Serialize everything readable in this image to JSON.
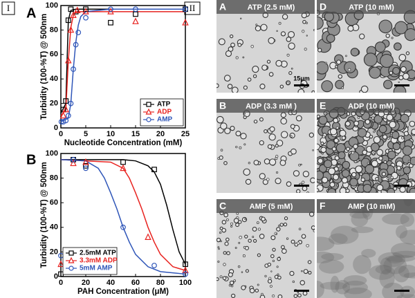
{
  "figure": {
    "part_labels": [
      "I",
      "II"
    ],
    "chart_labels": [
      "A",
      "B"
    ],
    "micrographs": [
      {
        "letter": "A",
        "label": "ATP (2.5 mM)"
      },
      {
        "letter": "D",
        "label": "ATP (10 mM)"
      },
      {
        "letter": "B",
        "label": "ADP (3.3 mM )"
      },
      {
        "letter": "E",
        "label": "ADP (10 mM)"
      },
      {
        "letter": "C",
        "label": "AMP (5 mM)"
      },
      {
        "letter": "F",
        "label": "AMP (10 mM)"
      }
    ],
    "scale_label": "15μm"
  },
  "chart_data": [
    {
      "type": "scatter",
      "xlabel": "Nucleotide Concentration (mM)",
      "ylabel": "Turbidity (100-%T) @ 500nm",
      "xlim": [
        0,
        25
      ],
      "ylim": [
        0,
        100
      ],
      "xticks": [
        0,
        5,
        10,
        15,
        20,
        25
      ],
      "yticks": [
        0,
        20,
        40,
        60,
        80,
        100
      ],
      "legend": "lower right",
      "series": [
        {
          "name": "ATP",
          "color": "#000000",
          "marker": "square",
          "x": [
            0.5,
            1,
            1.5,
            2,
            3,
            5,
            10,
            15,
            25
          ],
          "values": [
            15,
            22,
            88,
            97,
            95,
            97,
            86,
            93,
            97
          ]
        },
        {
          "name": "ADP",
          "color": "#e8221f",
          "marker": "triangle",
          "x": [
            0.5,
            1,
            1.5,
            2,
            2.5,
            3.3,
            5,
            10,
            15,
            25
          ],
          "values": [
            10,
            15,
            55,
            80,
            92,
            96,
            95,
            95,
            87,
            86
          ]
        },
        {
          "name": "AMP",
          "color": "#2e55b8",
          "marker": "circle",
          "x": [
            0.1,
            0.5,
            1,
            1.5,
            2,
            2.5,
            3,
            3.5,
            5,
            10,
            15,
            25
          ],
          "values": [
            5,
            5,
            6,
            10,
            20,
            48,
            68,
            78,
            90,
            97,
            97,
            97
          ]
        }
      ],
      "curves": [
        {
          "color": "#000000",
          "x": [
            0,
            1,
            1.25,
            1.5,
            2,
            3,
            5,
            10,
            25
          ],
          "values": [
            12,
            20,
            55,
            88,
            96,
            97,
            97,
            97,
            97
          ]
        },
        {
          "color": "#e8221f",
          "x": [
            0,
            1,
            1.5,
            2,
            2.5,
            3,
            5,
            25
          ],
          "values": [
            10,
            15,
            55,
            82,
            92,
            95,
            95,
            95
          ]
        },
        {
          "color": "#2e55b8",
          "x": [
            0,
            1.5,
            2,
            2.5,
            3,
            3.5,
            4,
            5,
            10,
            25
          ],
          "values": [
            5,
            8,
            20,
            48,
            70,
            84,
            91,
            95,
            97,
            97
          ]
        }
      ]
    },
    {
      "type": "scatter",
      "xlabel": "PAH Concentration (μM)",
      "ylabel": "Turbidity (100-%T) @ 500nm",
      "xlim": [
        0,
        100
      ],
      "ylim": [
        0,
        100
      ],
      "xticks": [
        0,
        20,
        40,
        60,
        80,
        100
      ],
      "yticks": [
        0,
        20,
        40,
        60,
        80,
        100
      ],
      "legend": "lower left",
      "series": [
        {
          "name": "2.5mM ATP",
          "color": "#000000",
          "marker": "square",
          "x": [
            0,
            10,
            20,
            50,
            75,
            100
          ],
          "values": [
            2,
            95,
            90,
            93,
            87,
            10
          ]
        },
        {
          "name": "3.3mM ADP",
          "color": "#e8221f",
          "marker": "triangle",
          "x": [
            0,
            10,
            20,
            50,
            70,
            100
          ],
          "values": [
            10,
            92,
            93,
            88,
            32,
            5
          ]
        },
        {
          "name": "5mM AMP",
          "color": "#2e55b8",
          "marker": "circle",
          "x": [
            0,
            10,
            20,
            50,
            75,
            100
          ],
          "values": [
            17,
            95,
            88,
            40,
            9,
            2
          ]
        }
      ],
      "curves": [
        {
          "color": "#000000",
          "x": [
            0,
            50,
            60,
            70,
            75,
            80,
            85,
            90,
            95,
            100
          ],
          "values": [
            95,
            95,
            94,
            90,
            85,
            75,
            58,
            38,
            20,
            10
          ]
        },
        {
          "color": "#e8221f",
          "x": [
            0,
            40,
            50,
            55,
            60,
            65,
            70,
            75,
            80,
            90,
            100
          ],
          "values": [
            95,
            93,
            88,
            80,
            68,
            55,
            40,
            28,
            18,
            8,
            5
          ]
        },
        {
          "color": "#2e55b8",
          "x": [
            0,
            20,
            30,
            35,
            40,
            45,
            50,
            55,
            60,
            70,
            80,
            100
          ],
          "values": [
            95,
            94,
            88,
            80,
            68,
            55,
            40,
            28,
            18,
            8,
            4,
            2
          ]
        }
      ]
    }
  ]
}
